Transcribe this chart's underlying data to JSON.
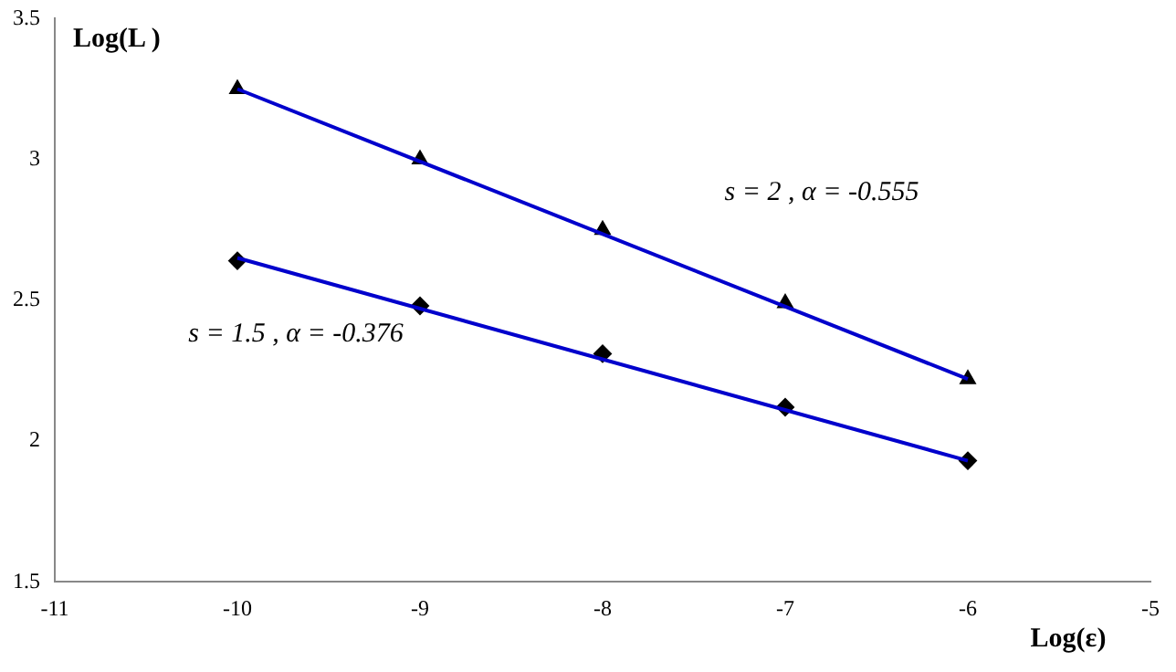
{
  "chart_data": {
    "type": "scatter",
    "xlabel": "Log(ε)",
    "ylabel": "Log(L )",
    "xlim": [
      -11,
      -5
    ],
    "xticks": [
      -11,
      -10,
      -9,
      -8,
      -7,
      -6,
      -5
    ],
    "ylim": [
      1.5,
      3.5
    ],
    "yticks": [
      1.5,
      2,
      2.5,
      3,
      3.5
    ],
    "grid": false,
    "legend": false,
    "series": [
      {
        "type": "line",
        "color": "#0000cc",
        "x": [
          -10,
          -6
        ],
        "values": [
          3.25,
          2.22
        ],
        "marker": "none"
      },
      {
        "type": "line",
        "color": "#0000cc",
        "x": [
          -10,
          -6
        ],
        "values": [
          2.65,
          1.93
        ],
        "marker": "none"
      },
      {
        "type": "scatter",
        "color": "#000000",
        "x": [
          -10,
          -9,
          -8,
          -7,
          -6
        ],
        "values": [
          3.25,
          3.0,
          2.75,
          2.49,
          2.22
        ],
        "marker": "triangle"
      },
      {
        "type": "scatter",
        "color": "#000000",
        "x": [
          -10,
          -9,
          -8,
          -7,
          -6
        ],
        "values": [
          2.64,
          2.48,
          2.31,
          2.12,
          1.93
        ],
        "marker": "diamond"
      }
    ],
    "annotations": [
      "s = 2 , α = -0.555",
      "s = 1.5 , α = -0.376"
    ]
  }
}
